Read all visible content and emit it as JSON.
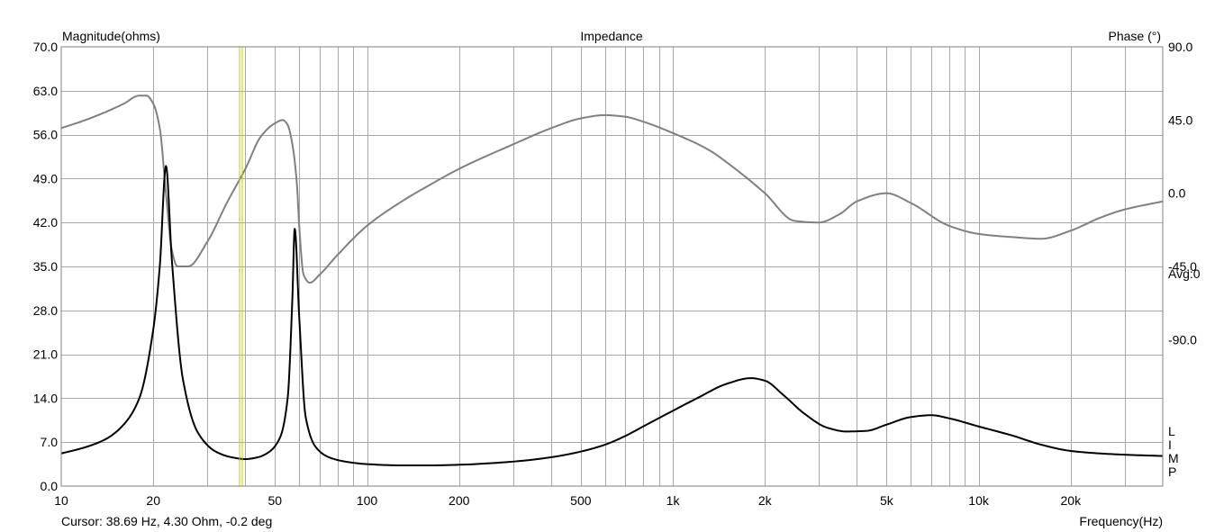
{
  "chart_data": {
    "type": "line",
    "title": "Impedance",
    "ylabel": "Magnitude(ohms)",
    "y2label": "Phase (°)",
    "xlabel": "Frequency(Hz)",
    "xscale": "log",
    "xlim": [
      10,
      40000
    ],
    "ylim": [
      0,
      70
    ],
    "y2lim": [
      -180,
      90
    ],
    "grid": true,
    "x_ticks": [
      10,
      20,
      50,
      100,
      200,
      500,
      1000,
      2000,
      5000,
      10000,
      20000
    ],
    "x_tick_labels": [
      "10",
      "20",
      "50",
      "100",
      "200",
      "500",
      "1k",
      "2k",
      "5k",
      "10k",
      "20k"
    ],
    "y_ticks": [
      0,
      7,
      14,
      21,
      28,
      35,
      42,
      49,
      56,
      63,
      70
    ],
    "y_tick_labels": [
      "0.0",
      "7.0",
      "14.0",
      "21.0",
      "28.0",
      "35.0",
      "42.0",
      "49.0",
      "56.0",
      "63.0",
      "70.0"
    ],
    "y2_ticks": [
      90,
      45,
      0,
      -45,
      -90
    ],
    "y2_tick_labels": [
      "90.0",
      "45.0",
      "0.0",
      "-45.0",
      "-90.0"
    ],
    "avg_label": "Avg:0",
    "legend_letters": [
      "L",
      "I",
      "M",
      "P"
    ],
    "cursor": {
      "x": 38.69,
      "text": "Cursor: 38.69 Hz, 4.30 Ohm, -0.2 deg",
      "color": "#c8c800"
    },
    "series": [
      {
        "name": "Magnitude",
        "color": "#000000",
        "axis": "left",
        "x": [
          10,
          12,
          14,
          16,
          18,
          20,
          21,
          22,
          23,
          25,
          28,
          32,
          36,
          40,
          44,
          48,
          52,
          55,
          57,
          58,
          60,
          63,
          68,
          75,
          85,
          100,
          130,
          160,
          200,
          300,
          400,
          500,
          600,
          700,
          800,
          1000,
          1200,
          1500,
          1800,
          2000,
          2300,
          2700,
          3200,
          3700,
          4300,
          5000,
          6000,
          7000,
          8000,
          10000,
          13000,
          16000,
          20000,
          25000,
          30000,
          40000
        ],
        "y": [
          5.2,
          6.2,
          7.5,
          9.8,
          14.0,
          25.0,
          35.0,
          51.0,
          36.0,
          17.0,
          8.5,
          5.5,
          4.6,
          4.3,
          4.6,
          5.5,
          7.8,
          14.0,
          30.0,
          41.0,
          27.0,
          11.0,
          6.2,
          4.6,
          3.9,
          3.5,
          3.3,
          3.3,
          3.4,
          3.9,
          4.6,
          5.5,
          6.6,
          8.0,
          9.5,
          12.0,
          14.0,
          16.3,
          17.2,
          16.8,
          14.5,
          11.5,
          9.3,
          8.7,
          8.8,
          9.8,
          11.0,
          11.3,
          10.8,
          9.5,
          8.0,
          6.6,
          5.6,
          5.2,
          5.0,
          4.8
        ]
      },
      {
        "name": "Phase",
        "color": "#808080",
        "axis": "right",
        "x": [
          10,
          12,
          14,
          16,
          18,
          19,
          20,
          21,
          22,
          23,
          24,
          26,
          30,
          35,
          40,
          45,
          50,
          53,
          55,
          57,
          59,
          60,
          62,
          65,
          70,
          80,
          100,
          130,
          160,
          200,
          300,
          400,
          500,
          600,
          700,
          800,
          1000,
          1300,
          1600,
          2000,
          2500,
          3000,
          3500,
          4000,
          5000,
          6000,
          8000,
          10000,
          13000,
          16000,
          20000,
          25000,
          30000,
          40000
        ],
        "y": [
          40,
          45,
          50,
          55,
          60,
          60,
          55,
          40,
          0,
          -35,
          -45,
          -45,
          -30,
          -5,
          15,
          35,
          43,
          45,
          42,
          30,
          5,
          -20,
          -50,
          -55,
          -50,
          -38,
          -20,
          -5,
          5,
          15,
          30,
          40,
          46,
          48,
          47,
          44,
          37,
          27,
          15,
          0,
          -17,
          -18,
          -13,
          -5,
          0,
          -6,
          -20,
          -25,
          -27,
          -28,
          -23,
          -15,
          -10,
          -5
        ]
      }
    ]
  }
}
